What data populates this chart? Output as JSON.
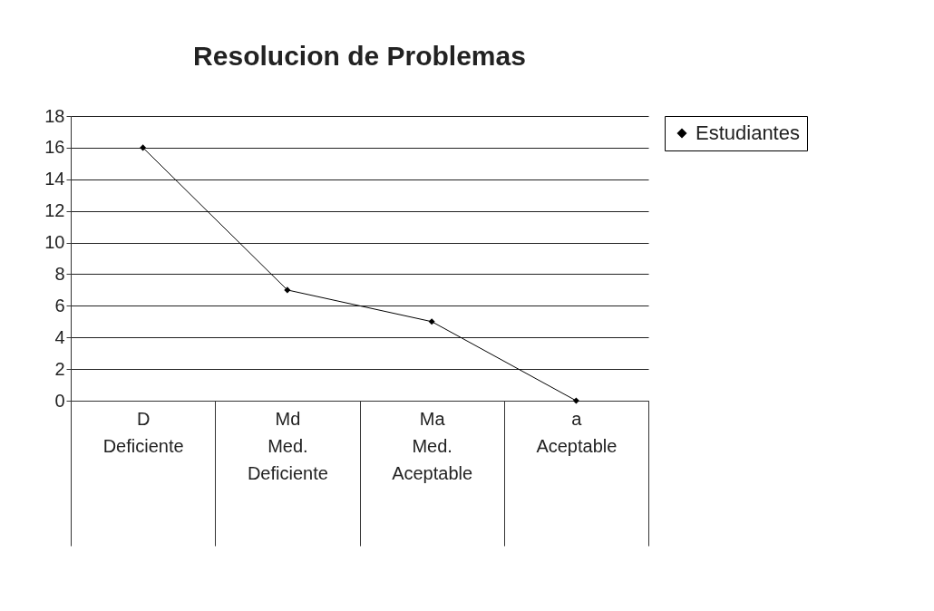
{
  "chart_data": {
    "type": "line",
    "title": "Resolucion de Problemas",
    "categories": [
      "D\nDeficiente",
      "Md\nMed.\nDeficiente",
      "Ma\nMed.\nAceptable",
      "a\nAceptable"
    ],
    "series": [
      {
        "name": "Estudiantes",
        "color": "#000000",
        "values": [
          16,
          7,
          5,
          0
        ]
      }
    ],
    "ylim": [
      0,
      18
    ],
    "yticks": [
      0,
      2,
      4,
      6,
      8,
      10,
      12,
      14,
      16,
      18
    ],
    "grid": "y",
    "legend": "right",
    "marker": "diamond",
    "line_style": "solid"
  }
}
